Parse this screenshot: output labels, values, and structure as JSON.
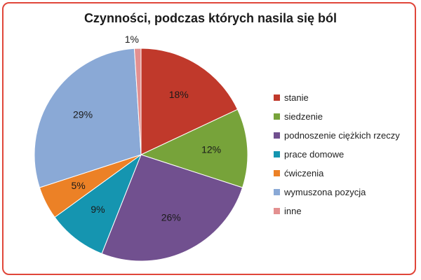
{
  "chart_data": {
    "type": "pie",
    "title": "Czynności, podczas których nasila się ból",
    "legend_position": "right",
    "slices": [
      {
        "label": "stanie",
        "value": 18,
        "display": "18%",
        "color": "#c0392b"
      },
      {
        "label": "siedzenie",
        "value": 12,
        "display": "12%",
        "color": "#77a33a"
      },
      {
        "label": "podnoszenie ciężkich rzeczy",
        "value": 26,
        "display": "26%",
        "color": "#71508f"
      },
      {
        "label": "prace domowe",
        "value": 9,
        "display": "9%",
        "color": "#1595b0"
      },
      {
        "label": "ćwiczenia",
        "value": 5,
        "display": "5%",
        "color": "#ec8126"
      },
      {
        "label": "wymuszona pozycja",
        "value": 29,
        "display": "29%",
        "color": "#8aa9d6"
      },
      {
        "label": "inne",
        "value": 1,
        "display": "1%",
        "color": "#e39090"
      }
    ]
  }
}
